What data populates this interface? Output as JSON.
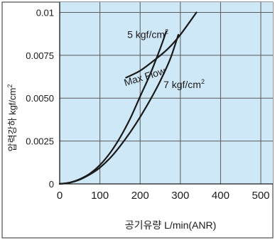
{
  "chart_data": {
    "type": "line",
    "title": "",
    "xlabel": "공기유량 L/min(ANR)",
    "ylabel": "압력강하 kgf/cm",
    "ylabel_sup": "2",
    "xlim": [
      0,
      530
    ],
    "ylim": [
      0,
      0.0106
    ],
    "x_ticks": [
      0,
      100,
      200,
      300,
      400,
      500
    ],
    "y_ticks": [
      0,
      0.0025,
      0.005,
      0.0075,
      0.01
    ],
    "x_tick_labels": [
      "0",
      "100",
      "200",
      "300",
      "400",
      "500"
    ],
    "y_tick_labels": [
      "0",
      "0.0025",
      "0.0050",
      "0.0075",
      "0.01"
    ],
    "grid": true,
    "background_color": "#cfe8f7",
    "grid_color": "#5a5a5a",
    "line_color": "#1a1a1a",
    "series": [
      {
        "name": "5 kgf/cm",
        "name_sup": "2",
        "x": [
          0,
          25,
          50,
          75,
          100,
          125,
          150,
          175,
          200,
          225,
          250,
          265
        ],
        "y": [
          0,
          8e-05,
          0.00028,
          0.0006,
          0.0011,
          0.0018,
          0.0027,
          0.0038,
          0.0051,
          0.0064,
          0.0079,
          0.0089
        ]
      },
      {
        "name": "7 kgf/cm",
        "name_sup": "2",
        "x": [
          0,
          25,
          50,
          75,
          100,
          125,
          150,
          175,
          200,
          225,
          250,
          275,
          295
        ],
        "y": [
          0,
          7e-05,
          0.00025,
          0.00055,
          0.00095,
          0.0015,
          0.0022,
          0.003,
          0.0039,
          0.0049,
          0.006,
          0.0073,
          0.0087
        ]
      },
      {
        "name": "Max Flow",
        "x": [
          165,
          200,
          240,
          270,
          300,
          340
        ],
        "y": [
          0.0062,
          0.0066,
          0.0073,
          0.0079,
          0.0087,
          0.01
        ]
      }
    ],
    "annotations": [
      {
        "text": "5 kgf/cm",
        "sup": "2",
        "x": 168,
        "y": 0.0085
      },
      {
        "text": "7 kgf/cm",
        "sup": "2",
        "x": 258,
        "y": 0.0056
      },
      {
        "text": "Max Flow",
        "x": 163,
        "y": 0.0057,
        "rotate": -17
      }
    ]
  }
}
